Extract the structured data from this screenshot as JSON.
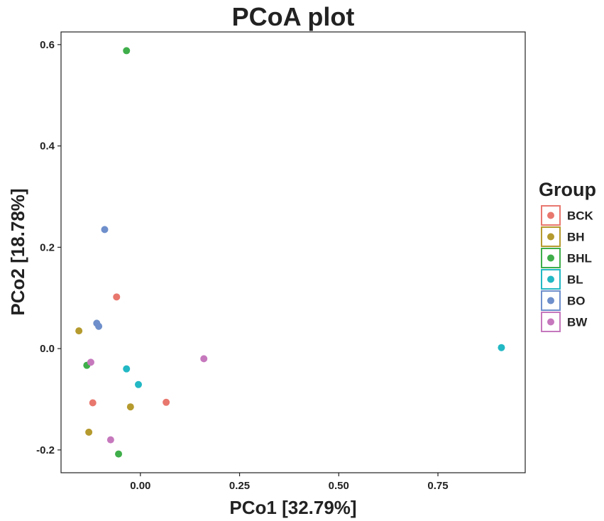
{
  "chart_data": {
    "type": "scatter",
    "title": "PCoA plot",
    "xlabel": "PCo1 [32.79%]",
    "ylabel": "PCo2 [18.78%]",
    "xlim": [
      -0.2,
      0.97
    ],
    "ylim": [
      -0.245,
      0.625
    ],
    "x_ticks": [
      0.0,
      0.25,
      0.5,
      0.75
    ],
    "x_tick_labels": [
      "0.00",
      "0.25",
      "0.50",
      "0.75"
    ],
    "y_ticks": [
      -0.2,
      0.0,
      0.2,
      0.4,
      0.6
    ],
    "y_tick_labels": [
      "-0.2",
      "0.0",
      "0.2",
      "0.4",
      "0.6"
    ],
    "grid": false,
    "legend": {
      "title": "Group",
      "position": "right"
    },
    "series": [
      {
        "name": "BCK",
        "color": "#E8776E",
        "points": [
          {
            "x": -0.06,
            "y": 0.102
          },
          {
            "x": -0.12,
            "y": -0.107
          },
          {
            "x": 0.065,
            "y": -0.106
          }
        ]
      },
      {
        "name": "BH",
        "color": "#B59A2E",
        "points": [
          {
            "x": -0.155,
            "y": 0.035
          },
          {
            "x": -0.13,
            "y": -0.165
          },
          {
            "x": -0.025,
            "y": -0.115
          }
        ]
      },
      {
        "name": "BHL",
        "color": "#3FAE4A",
        "points": [
          {
            "x": -0.035,
            "y": 0.588
          },
          {
            "x": -0.135,
            "y": -0.033
          },
          {
            "x": -0.055,
            "y": -0.208
          }
        ]
      },
      {
        "name": "BL",
        "color": "#22B8C4",
        "points": [
          {
            "x": 0.91,
            "y": 0.002
          },
          {
            "x": -0.035,
            "y": -0.04
          },
          {
            "x": -0.005,
            "y": -0.071
          }
        ]
      },
      {
        "name": "BO",
        "color": "#6E8FCB",
        "points": [
          {
            "x": -0.09,
            "y": 0.235
          },
          {
            "x": -0.11,
            "y": 0.05
          },
          {
            "x": -0.105,
            "y": 0.044
          }
        ]
      },
      {
        "name": "BW",
        "color": "#C678BD",
        "points": [
          {
            "x": 0.16,
            "y": -0.02
          },
          {
            "x": -0.125,
            "y": -0.027
          },
          {
            "x": -0.075,
            "y": -0.18
          }
        ]
      }
    ]
  }
}
